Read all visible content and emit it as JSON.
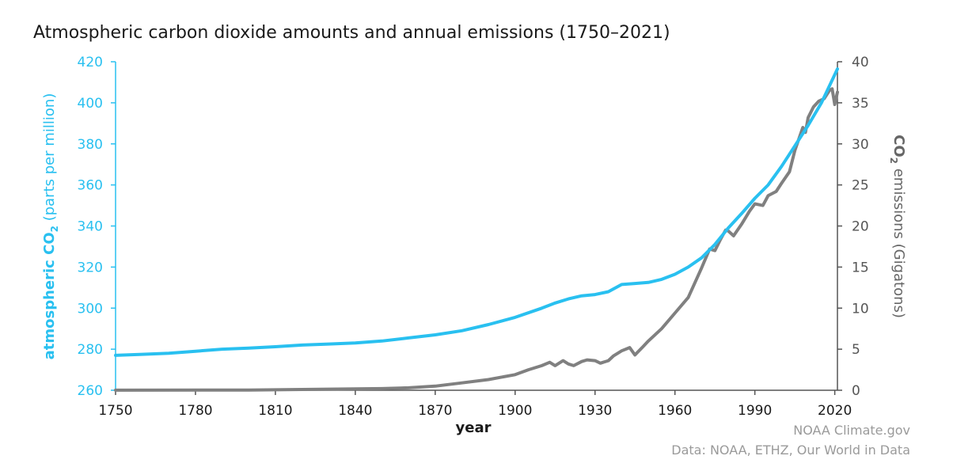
{
  "chart_data": {
    "type": "line",
    "title": "Atmospheric carbon dioxide amounts and annual emissions (1750–2021)",
    "xlabel": "year",
    "xlim": [
      1750,
      2021
    ],
    "x_ticks": [
      "1750",
      "1780",
      "1810",
      "1840",
      "1870",
      "1900",
      "1930",
      "1960",
      "1990",
      "2020"
    ],
    "left_axis": {
      "label_main": "atmospheric CO",
      "label_sub": "2",
      "label_tail": " (parts per million)",
      "ylim": [
        260,
        420
      ],
      "ticks": [
        "260",
        "280",
        "300",
        "320",
        "340",
        "360",
        "380",
        "400",
        "420"
      ]
    },
    "right_axis": {
      "label_main": "CO",
      "label_sub": "2",
      "label_tail": " emissions (Gigatons)",
      "ylim": [
        0,
        40
      ],
      "ticks": [
        "0",
        "5",
        "10",
        "15",
        "20",
        "25",
        "30",
        "35",
        "40"
      ]
    },
    "grid": false,
    "series": [
      {
        "color": "#29c0f0",
        "axis": "left",
        "x": [
          1750,
          1760,
          1770,
          1780,
          1790,
          1800,
          1810,
          1820,
          1830,
          1840,
          1850,
          1860,
          1870,
          1880,
          1890,
          1900,
          1910,
          1915,
          1920,
          1925,
          1930,
          1935,
          1940,
          1945,
          1950,
          1955,
          1960,
          1965,
          1970,
          1975,
          1980,
          1985,
          1990,
          1995,
          2000,
          2005,
          2010,
          2015,
          2021
        ],
        "values": [
          277,
          277.5,
          278,
          279,
          280,
          280.5,
          281.2,
          282,
          282.5,
          283,
          284,
          285.5,
          287,
          289,
          292,
          295.5,
          300,
          302.5,
          304.5,
          306,
          306.6,
          308,
          311.5,
          312,
          312.5,
          314,
          316.5,
          320,
          324.5,
          331,
          339,
          346,
          353.5,
          360,
          369,
          379,
          389,
          400,
          416.5
        ]
      },
      {
        "color": "#808080",
        "axis": "right",
        "x": [
          1750,
          1800,
          1850,
          1860,
          1870,
          1880,
          1890,
          1900,
          1905,
          1910,
          1913,
          1915,
          1918,
          1920,
          1922,
          1925,
          1927,
          1930,
          1932,
          1935,
          1937,
          1940,
          1943,
          1945,
          1948,
          1950,
          1955,
          1960,
          1965,
          1970,
          1973,
          1975,
          1977,
          1979,
          1980,
          1982,
          1985,
          1988,
          1990,
          1993,
          1995,
          1998,
          2000,
          2003,
          2005,
          2008,
          2009,
          2010,
          2012,
          2014,
          2016,
          2018,
          2019,
          2020,
          2021
        ],
        "values": [
          0.01,
          0.03,
          0.2,
          0.3,
          0.5,
          0.9,
          1.3,
          1.9,
          2.5,
          3.0,
          3.4,
          3.0,
          3.6,
          3.2,
          3.0,
          3.5,
          3.7,
          3.6,
          3.3,
          3.6,
          4.2,
          4.8,
          5.2,
          4.3,
          5.3,
          6.0,
          7.5,
          9.4,
          11.3,
          14.9,
          17.2,
          17.0,
          18.3,
          19.5,
          19.4,
          18.8,
          20.2,
          21.8,
          22.7,
          22.5,
          23.7,
          24.2,
          25.2,
          26.6,
          29.2,
          32.0,
          31.4,
          33.2,
          34.5,
          35.2,
          35.5,
          36.5,
          36.7,
          34.8,
          36.3
        ]
      }
    ]
  },
  "credit": {
    "line1": "NOAA Climate.gov",
    "line2": "Data: NOAA, ETHZ, Our World in Data"
  }
}
